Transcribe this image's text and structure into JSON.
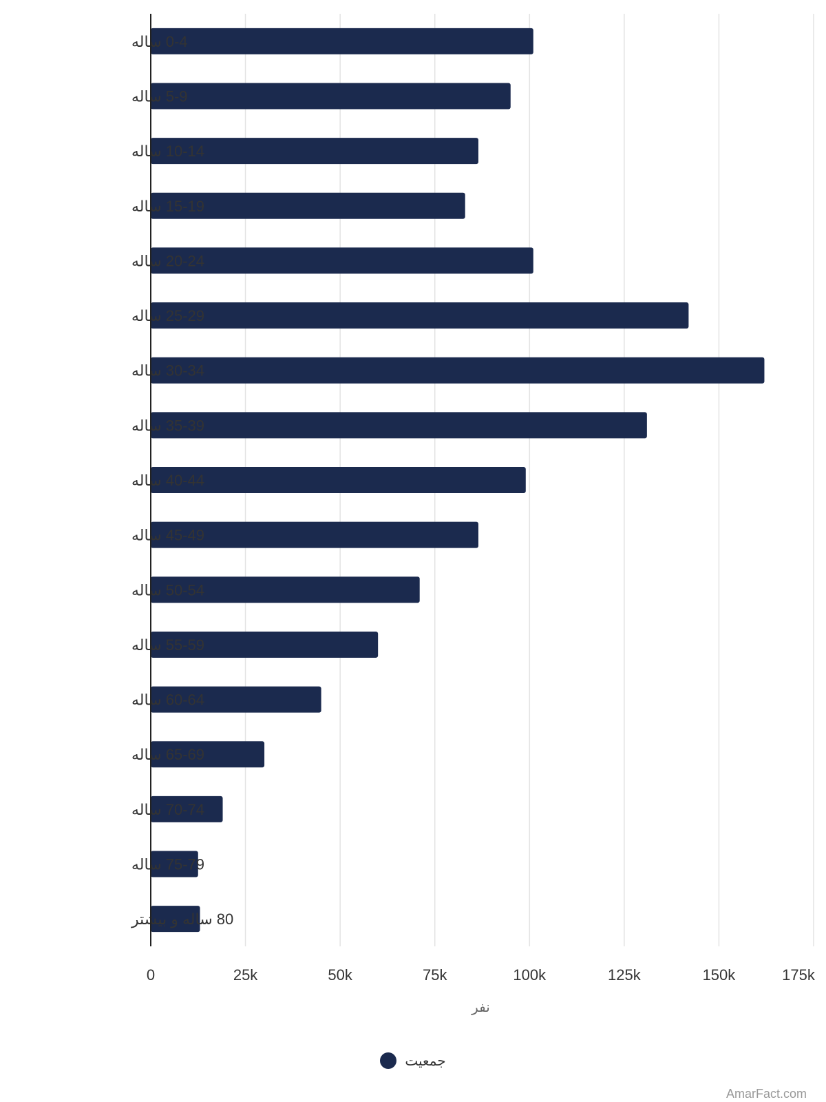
{
  "chart_data": {
    "type": "bar",
    "orientation": "horizontal",
    "categories": [
      "0-4 ساله",
      "5-9 ساله",
      "10-14 ساله",
      "15-19 ساله",
      "20-24 ساله",
      "25-29 ساله",
      "30-34 ساله",
      "35-39 ساله",
      "40-44 ساله",
      "45-49 ساله",
      "50-54 ساله",
      "55-59 ساله",
      "60-64 ساله",
      "65-69 ساله",
      "70-74 ساله",
      "75-79 ساله",
      "80 ساله و بیشتر"
    ],
    "series": [
      {
        "name": "جمعیت",
        "values": [
          101000,
          95000,
          86500,
          83000,
          101000,
          142000,
          162000,
          131000,
          99000,
          86500,
          71000,
          60000,
          45000,
          30000,
          19000,
          12500,
          13000
        ]
      }
    ],
    "xlabel": "نفر",
    "ylabel": "",
    "xlim": [
      0,
      175000
    ],
    "x_ticks": [
      "0",
      "25k",
      "50k",
      "75k",
      "100k",
      "125k",
      "150k",
      "175k"
    ],
    "grid": "vertical",
    "legend_position": "bottom-center",
    "bar_color": "#1b2a4e",
    "grid_color": "#e3e3e3"
  },
  "credit": "AmarFact.com"
}
